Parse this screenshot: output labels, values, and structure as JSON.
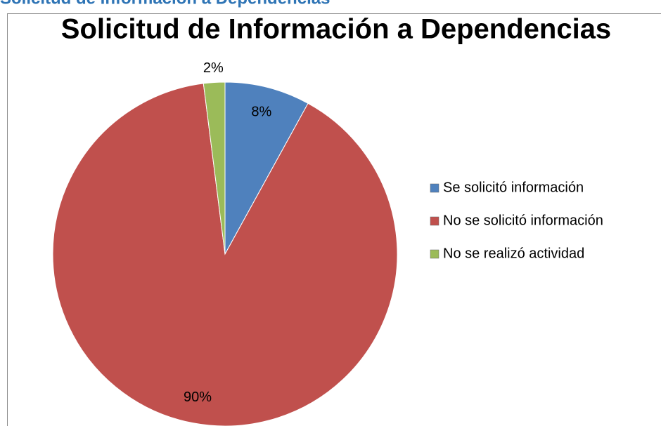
{
  "heading": "Solicitud de Información a Dependencias",
  "chart_data": {
    "type": "pie",
    "title": "Solicitud de Información a Dependencias",
    "categories": [
      "Se solicitó información",
      "No se solicitó información",
      "No se realizó actividad"
    ],
    "values": [
      8,
      90,
      2
    ],
    "value_labels": [
      "8%",
      "90%",
      "2%"
    ],
    "colors": [
      "#4f81bd",
      "#c0504d",
      "#9bbb59"
    ],
    "legend": "right"
  }
}
